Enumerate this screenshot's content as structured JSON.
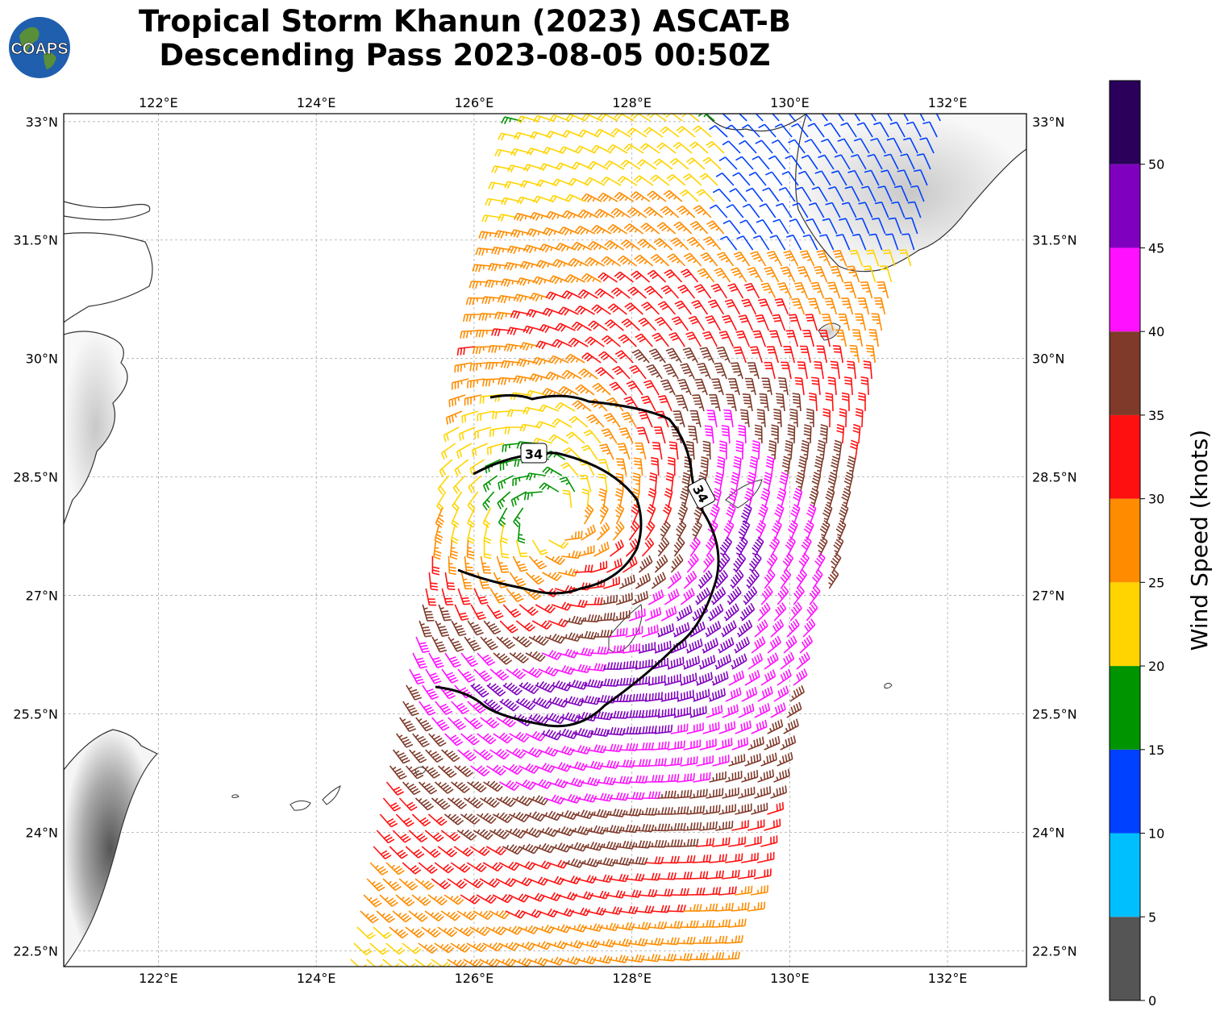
{
  "title": {
    "line1": "Tropical Storm Khanun (2023) ASCAT-B",
    "line2": "Descending Pass 2023-08-05 00:50Z"
  },
  "logo": {
    "text": "COAPS",
    "icon": "globe-icon"
  },
  "map": {
    "lon_range": [
      120.8,
      133.0
    ],
    "lat_range": [
      22.3,
      33.1
    ],
    "lon_ticks": [
      "122°E",
      "124°E",
      "126°E",
      "128°E",
      "130°E",
      "132°E"
    ],
    "lon_tick_values": [
      122,
      124,
      126,
      128,
      130,
      132
    ],
    "lat_ticks": [
      "33°N",
      "31.5°N",
      "30°N",
      "28.5°N",
      "27°N",
      "25.5°N",
      "24°N",
      "22.5°N"
    ],
    "lat_tick_values": [
      33,
      31.5,
      30,
      28.5,
      27,
      25.5,
      24,
      22.5
    ],
    "gridlines": true,
    "storm_center": {
      "lon": 127.0,
      "lat": 28.0
    },
    "contour_label": "34",
    "land_color": "#ffffff",
    "coastline_color": "#333333"
  },
  "colorbar": {
    "label": "Wind Speed (knots)",
    "ticks": [
      "0",
      "5",
      "10",
      "15",
      "20",
      "25",
      "30",
      "35",
      "40",
      "45",
      "50"
    ],
    "bins": [
      {
        "min": 0,
        "max": 5,
        "color": "#555555"
      },
      {
        "min": 5,
        "max": 10,
        "color": "#00bfff"
      },
      {
        "min": 10,
        "max": 15,
        "color": "#0040ff"
      },
      {
        "min": 15,
        "max": 20,
        "color": "#009400"
      },
      {
        "min": 20,
        "max": 25,
        "color": "#ffd400"
      },
      {
        "min": 25,
        "max": 30,
        "color": "#ff8c00"
      },
      {
        "min": 30,
        "max": 35,
        "color": "#ff1010"
      },
      {
        "min": 35,
        "max": 40,
        "color": "#7f3a2a"
      },
      {
        "min": 40,
        "max": 45,
        "color": "#ff10ff"
      },
      {
        "min": 45,
        "max": 50,
        "color": "#8000c0"
      },
      {
        "min": 50,
        "max": 55,
        "color": "#2a005a"
      }
    ]
  }
}
